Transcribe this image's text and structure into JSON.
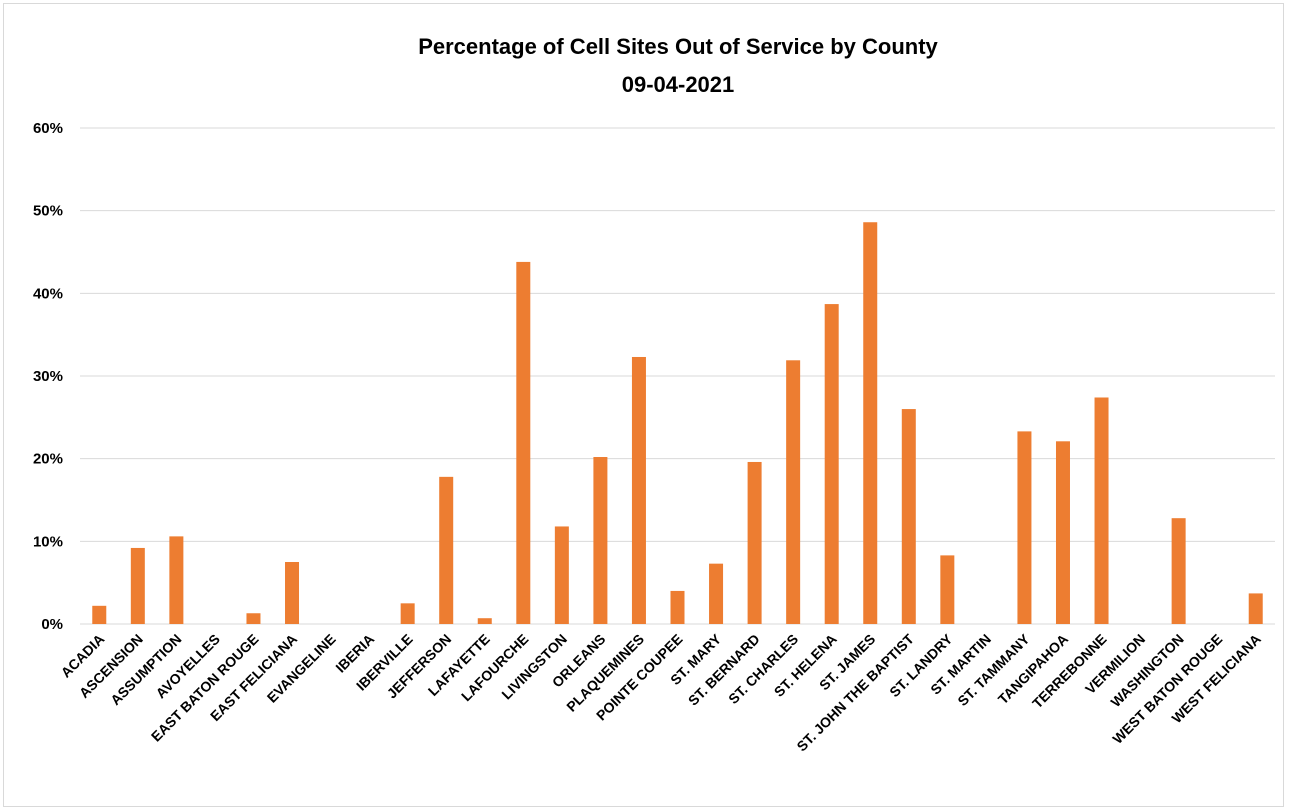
{
  "chart_data": {
    "type": "bar",
    "title": "Percentage of Cell Sites Out of Service by County",
    "subtitle": "09-04-2021",
    "xlabel": "",
    "ylabel": "",
    "ylim": [
      0,
      60
    ],
    "yticks": [
      "0%",
      "10%",
      "20%",
      "30%",
      "40%",
      "50%",
      "60%"
    ],
    "grid": true,
    "legend": "none",
    "bar_color": "#ED7D31",
    "grid_color": "#d9d9d9",
    "categories": [
      "ACADIA",
      "ASCENSION",
      "ASSUMPTION",
      "AVOYELLES",
      "EAST BATON ROUGE",
      "EAST FELICIANA",
      "EVANGELINE",
      "IBERIA",
      "IBERVILLE",
      "JEFFERSON",
      "LAFAYETTE",
      "LAFOURCHE",
      "LIVINGSTON",
      "ORLEANS",
      "PLAQUEMINES",
      "POINTE COUPEE",
      "ST. MARY",
      "ST. BERNARD",
      "ST. CHARLES",
      "ST. HELENA",
      "ST. JAMES",
      "ST. JOHN THE BAPTIST",
      "ST. LANDRY",
      "ST. MARTIN",
      "ST. TAMMANY",
      "TANGIPAHOA",
      "TERREBONNE",
      "VERMILION",
      "WASHINGTON",
      "WEST BATON ROUGE",
      "WEST FELICIANA"
    ],
    "values": [
      2.2,
      9.2,
      10.6,
      0,
      1.3,
      7.5,
      0,
      0,
      2.5,
      17.8,
      0.7,
      43.8,
      11.8,
      20.2,
      32.3,
      4.0,
      7.3,
      19.6,
      31.9,
      38.7,
      48.6,
      26.0,
      8.3,
      0,
      23.3,
      22.1,
      27.4,
      0,
      12.8,
      0,
      3.7
    ]
  }
}
